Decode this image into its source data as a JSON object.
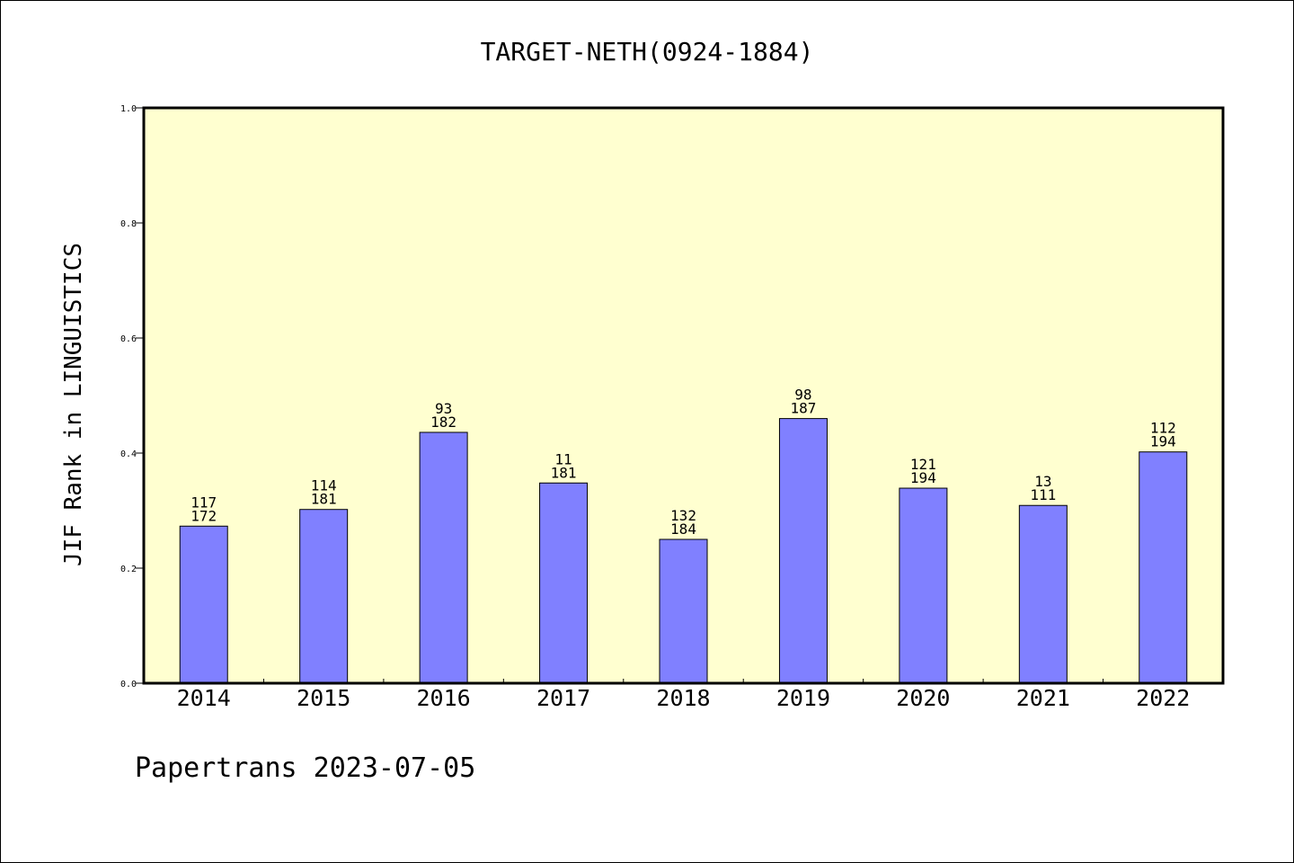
{
  "chart_data": {
    "type": "bar",
    "title": "TARGET-NETH(0924-1884)",
    "ylabel": "JIF Rank in LINGUISTICS",
    "xlabel": "",
    "ylim": [
      0,
      1.0
    ],
    "yticks": [
      "0.0",
      "0.2",
      "0.4",
      "0.6",
      "0.8",
      "1.0"
    ],
    "categories": [
      "2014",
      "2015",
      "2016",
      "2017",
      "2018",
      "2019",
      "2020",
      "2021",
      "2022"
    ],
    "values": [
      0.273,
      0.302,
      0.436,
      0.348,
      0.25,
      0.46,
      0.339,
      0.309,
      0.402
    ],
    "labels_top": [
      "117",
      "114",
      "93",
      "11",
      "132",
      "98",
      "121",
      "13",
      "112"
    ],
    "labels_bottom": [
      "172",
      "181",
      "182",
      "181",
      "184",
      "187",
      "194",
      "111",
      "194"
    ],
    "bar_color": "#8080ff",
    "plot_background": "#ffffd0",
    "grid": false
  },
  "footer": {
    "text": "Papertrans 2023-07-05"
  }
}
